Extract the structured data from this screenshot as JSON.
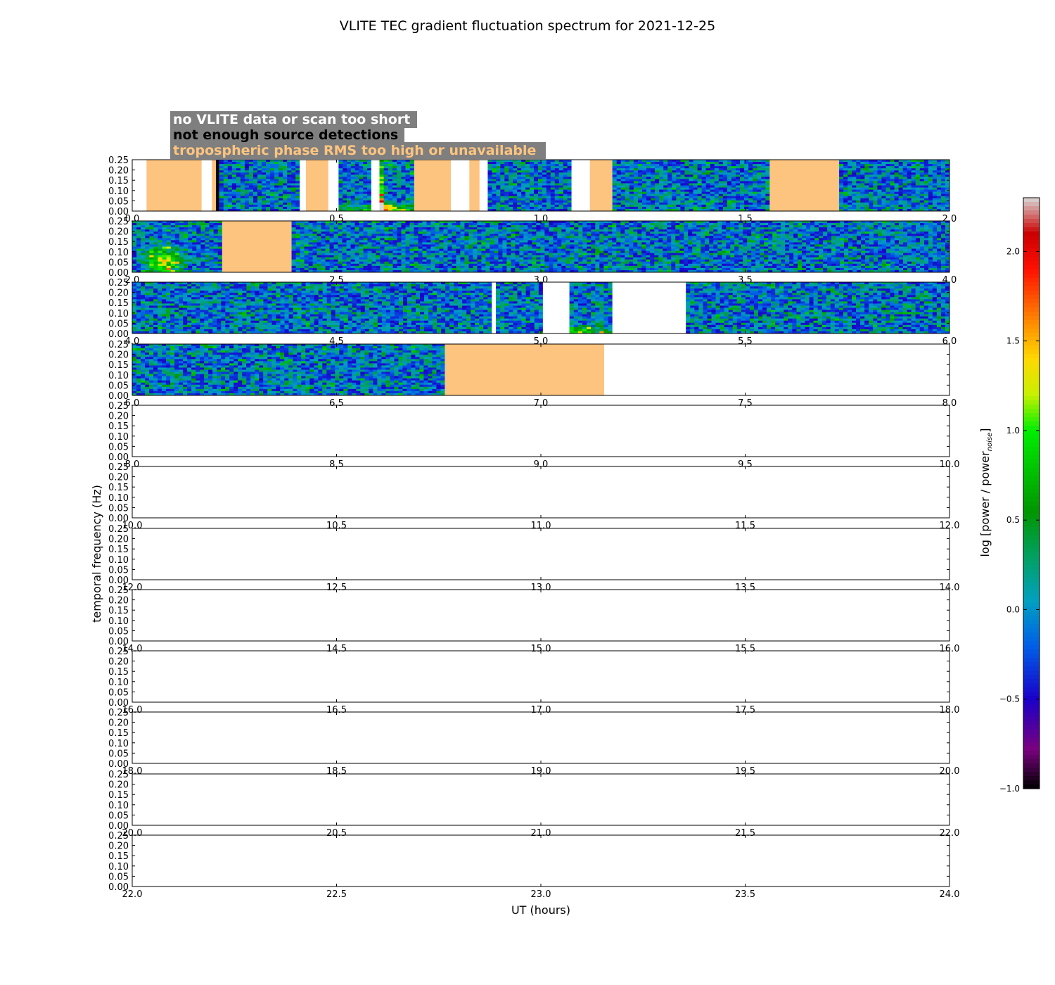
{
  "title": "VLITE TEC gradient fluctuation spectrum for 2021-12-25",
  "legend": {
    "no_data": "no VLITE data or scan too short",
    "no_detections": "not enough source detections",
    "tropo": "tropospheric phase RMS too high or unavailable"
  },
  "colors": {
    "figure_bg": "#ffffff",
    "legend_bg": "#7f7f7f",
    "no_data_text": "#ffffff",
    "no_detections_text": "#000000",
    "tropo": "#fdc47f",
    "no_data_fill": "#ffffff",
    "no_detections_fill": "#000000",
    "spectrum_base": "#0c8fc5"
  },
  "chart_data": {
    "type": "heatmap",
    "title": "VLITE TEC gradient fluctuation spectrum for 2021-12-25",
    "xlabel": "UT (hours)",
    "ylabel": "temporal frequency (Hz)",
    "ylim": [
      0,
      0.25
    ],
    "yticks": [
      "0.00",
      "0.05",
      "0.10",
      "0.15",
      "0.20",
      "0.25"
    ],
    "rows": [
      {
        "range": [
          0,
          2
        ],
        "xticks": [
          "0.0",
          "0.5",
          "1.0",
          "1.5",
          "2.0"
        ],
        "segments": [
          {
            "start": 0.0,
            "end": 0.035,
            "kind": "no_data"
          },
          {
            "start": 0.035,
            "end": 0.17,
            "kind": "tropo"
          },
          {
            "start": 0.17,
            "end": 0.195,
            "kind": "no_data"
          },
          {
            "start": 0.195,
            "end": 0.205,
            "kind": "tropo"
          },
          {
            "start": 0.205,
            "end": 0.213,
            "kind": "no_detections"
          },
          {
            "start": 0.213,
            "end": 0.41,
            "kind": "data"
          },
          {
            "start": 0.41,
            "end": 0.425,
            "kind": "no_data"
          },
          {
            "start": 0.425,
            "end": 0.48,
            "kind": "tropo"
          },
          {
            "start": 0.48,
            "end": 0.505,
            "kind": "no_data"
          },
          {
            "start": 0.505,
            "end": 0.585,
            "kind": "data",
            "hot": "bottom"
          },
          {
            "start": 0.585,
            "end": 0.605,
            "kind": "no_data"
          },
          {
            "start": 0.605,
            "end": 0.69,
            "kind": "data",
            "hot": "strong"
          },
          {
            "start": 0.69,
            "end": 0.78,
            "kind": "tropo"
          },
          {
            "start": 0.78,
            "end": 0.825,
            "kind": "no_data"
          },
          {
            "start": 0.825,
            "end": 0.85,
            "kind": "tropo"
          },
          {
            "start": 0.85,
            "end": 0.87,
            "kind": "no_data"
          },
          {
            "start": 0.87,
            "end": 1.075,
            "kind": "data"
          },
          {
            "start": 1.075,
            "end": 1.12,
            "kind": "no_data"
          },
          {
            "start": 1.12,
            "end": 1.175,
            "kind": "tropo"
          },
          {
            "start": 1.175,
            "end": 1.56,
            "kind": "data"
          },
          {
            "start": 1.56,
            "end": 1.73,
            "kind": "tropo"
          },
          {
            "start": 1.73,
            "end": 2.0,
            "kind": "data"
          }
        ]
      },
      {
        "range": [
          2,
          4
        ],
        "xticks": [
          "2.0",
          "2.5",
          "3.0",
          "3.5",
          "4.0"
        ],
        "segments": [
          {
            "start": 2.0,
            "end": 2.22,
            "kind": "data",
            "hot": "blob"
          },
          {
            "start": 2.22,
            "end": 2.39,
            "kind": "tropo"
          },
          {
            "start": 2.39,
            "end": 4.0,
            "kind": "data"
          }
        ]
      },
      {
        "range": [
          4,
          6
        ],
        "xticks": [
          "4.0",
          "4.5",
          "5.0",
          "5.5",
          "6.0"
        ],
        "segments": [
          {
            "start": 4.0,
            "end": 4.88,
            "kind": "data"
          },
          {
            "start": 4.88,
            "end": 4.89,
            "kind": "no_data"
          },
          {
            "start": 4.89,
            "end": 5.005,
            "kind": "data"
          },
          {
            "start": 5.005,
            "end": 5.07,
            "kind": "no_data"
          },
          {
            "start": 5.07,
            "end": 5.175,
            "kind": "data",
            "hot": "bottom"
          },
          {
            "start": 5.175,
            "end": 5.355,
            "kind": "no_data"
          },
          {
            "start": 5.355,
            "end": 6.0,
            "kind": "data"
          }
        ]
      },
      {
        "range": [
          6,
          8
        ],
        "xticks": [
          "6.0",
          "6.5",
          "7.0",
          "7.5",
          "8.0"
        ],
        "segments": [
          {
            "start": 6.0,
            "end": 6.765,
            "kind": "data"
          },
          {
            "start": 6.765,
            "end": 7.155,
            "kind": "tropo"
          }
        ]
      },
      {
        "range": [
          8,
          10
        ],
        "xticks": [
          "8.0",
          "8.5",
          "9.0",
          "9.5",
          "10.0"
        ],
        "segments": []
      },
      {
        "range": [
          10,
          12
        ],
        "xticks": [
          "10.0",
          "10.5",
          "11.0",
          "11.5",
          "12.0"
        ],
        "segments": []
      },
      {
        "range": [
          12,
          14
        ],
        "xticks": [
          "12.0",
          "12.5",
          "13.0",
          "13.5",
          "14.0"
        ],
        "segments": []
      },
      {
        "range": [
          14,
          16
        ],
        "xticks": [
          "14.0",
          "14.5",
          "15.0",
          "15.5",
          "16.0"
        ],
        "segments": []
      },
      {
        "range": [
          16,
          18
        ],
        "xticks": [
          "16.0",
          "16.5",
          "17.0",
          "17.5",
          "18.0"
        ],
        "segments": []
      },
      {
        "range": [
          18,
          20
        ],
        "xticks": [
          "18.0",
          "18.5",
          "19.0",
          "19.5",
          "20.0"
        ],
        "segments": []
      },
      {
        "range": [
          20,
          22
        ],
        "xticks": [
          "20.0",
          "20.5",
          "21.0",
          "21.5",
          "22.0"
        ],
        "segments": []
      },
      {
        "range": [
          22,
          24
        ],
        "xticks": [
          "22.0",
          "22.5",
          "23.0",
          "23.5",
          "24.0"
        ],
        "segments": []
      }
    ],
    "colorbar": {
      "label_main": "log [power / power",
      "label_sub": "noise",
      "label_end": "]",
      "range": [
        -1.0,
        2.3
      ],
      "ticks": [
        "−1.0",
        "−0.5",
        "0.0",
        "0.5",
        "1.0",
        "1.5",
        "2.0"
      ],
      "tick_values": [
        -1.0,
        -0.5,
        0.0,
        0.5,
        1.0,
        1.5,
        2.0
      ],
      "stops": [
        {
          "v": -1.0,
          "c": "#000000"
        },
        {
          "v": -0.78,
          "c": "#7a0080"
        },
        {
          "v": -0.5,
          "c": "#1a00c8"
        },
        {
          "v": -0.2,
          "c": "#0060e8"
        },
        {
          "v": 0.05,
          "c": "#00a0c0"
        },
        {
          "v": 0.3,
          "c": "#00a060"
        },
        {
          "v": 0.55,
          "c": "#009600"
        },
        {
          "v": 1.0,
          "c": "#00ee00"
        },
        {
          "v": 1.2,
          "c": "#c8f000"
        },
        {
          "v": 1.4,
          "c": "#ffd800"
        },
        {
          "v": 1.6,
          "c": "#ff8c00"
        },
        {
          "v": 1.9,
          "c": "#ff1000"
        },
        {
          "v": 2.1,
          "c": "#cc0000"
        },
        {
          "v": 2.3,
          "c": "#d8d8d8"
        }
      ]
    }
  }
}
